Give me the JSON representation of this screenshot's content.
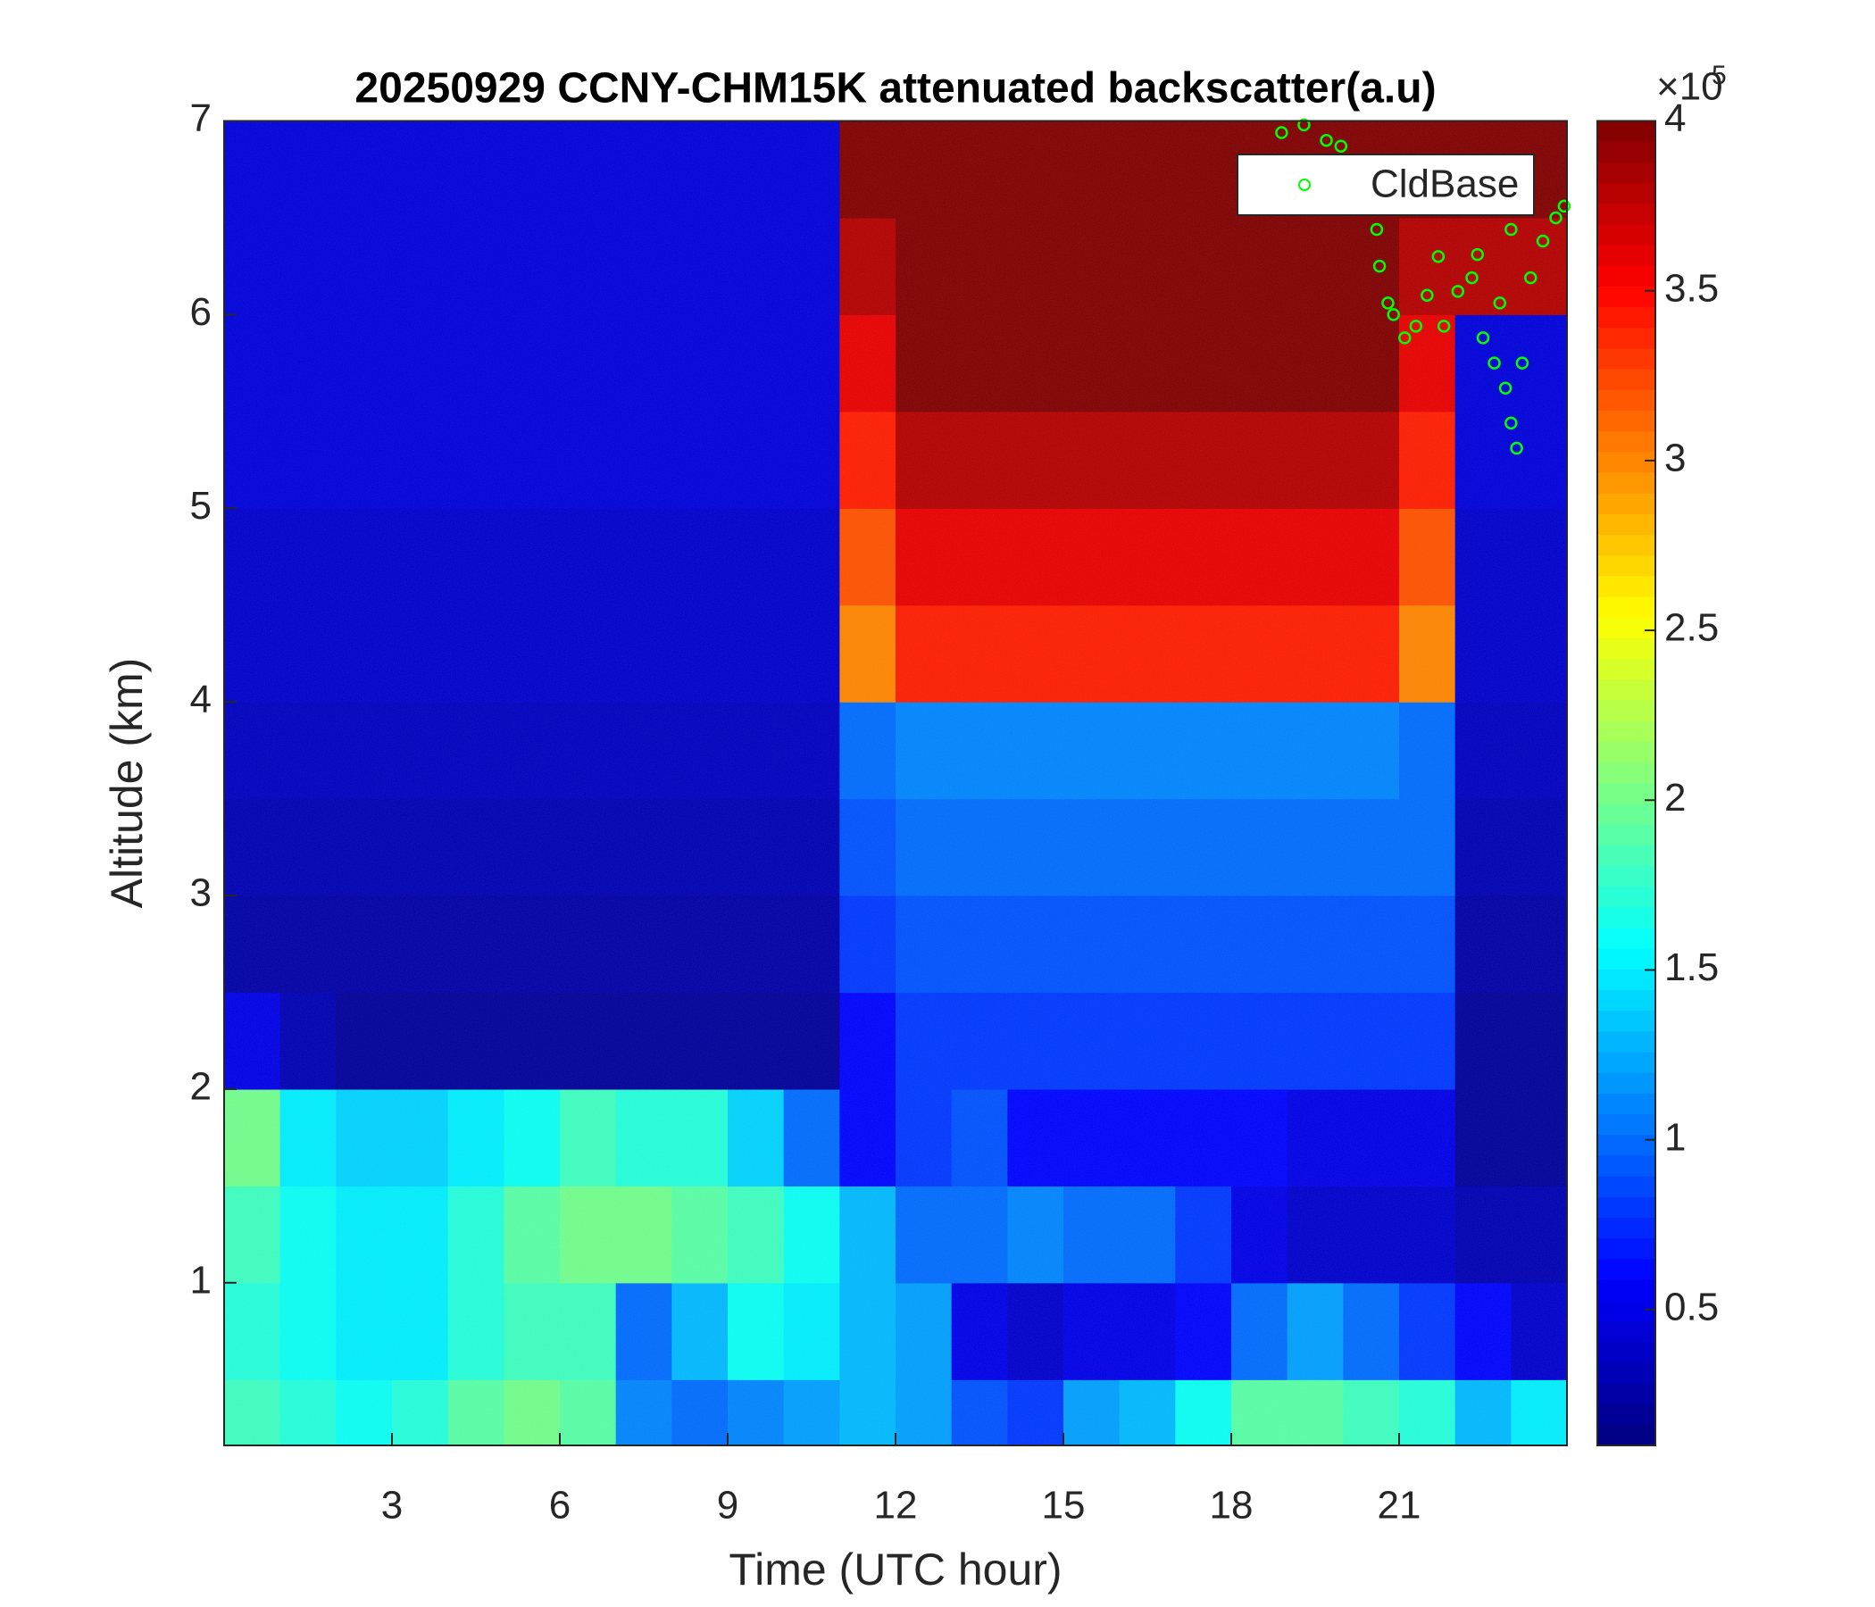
{
  "chart_data": {
    "type": "heatmap",
    "title": "20250929 CCNY-CHM15K attenuated backscatter(a.u)",
    "xlabel": "Time (UTC hour)",
    "ylabel": "Altitude (km)",
    "xlim": [
      0,
      24
    ],
    "xticks": [
      3,
      6,
      9,
      12,
      15,
      18,
      21
    ],
    "ylim": [
      0.16,
      7
    ],
    "yticks": [
      1,
      2,
      3,
      4,
      5,
      6,
      7
    ],
    "x_edges": [
      0,
      1,
      2,
      3,
      4,
      5,
      6,
      7,
      8,
      9,
      10,
      11,
      12,
      13,
      14,
      15,
      16,
      17,
      18,
      19,
      20,
      21,
      22,
      23,
      24
    ],
    "y_edges": [
      0.16,
      0.5,
      1,
      1.5,
      2,
      2.5,
      3,
      3.5,
      4,
      4.5,
      5,
      5.5,
      6,
      6.5,
      7
    ],
    "z": [
      [
        1.8,
        1.7,
        1.6,
        1.7,
        1.9,
        2.0,
        1.9,
        1.1,
        1.0,
        1.1,
        1.2,
        1.3,
        1.2,
        0.9,
        0.8,
        1.2,
        1.3,
        1.6,
        1.9,
        1.9,
        1.8,
        1.7,
        1.3,
        1.5
      ],
      [
        1.7,
        1.6,
        1.5,
        1.5,
        1.7,
        1.8,
        1.8,
        1.0,
        1.3,
        1.6,
        1.5,
        1.3,
        1.2,
        0.5,
        0.4,
        0.5,
        0.5,
        0.6,
        1.0,
        1.2,
        1.0,
        0.8,
        0.6,
        0.4
      ],
      [
        1.8,
        1.6,
        1.5,
        1.5,
        1.7,
        1.9,
        2.0,
        2.0,
        1.9,
        1.8,
        1.6,
        1.3,
        1.0,
        1.0,
        1.1,
        1.0,
        1.0,
        0.8,
        0.5,
        0.4,
        0.4,
        0.4,
        0.3,
        0.3
      ],
      [
        2.0,
        1.5,
        1.4,
        1.4,
        1.5,
        1.6,
        1.8,
        1.7,
        1.7,
        1.4,
        1.0,
        0.6,
        0.8,
        0.9,
        0.6,
        0.6,
        0.6,
        0.6,
        0.6,
        0.5,
        0.5,
        0.5,
        0.2,
        0.2
      ],
      [
        0.5,
        0.3,
        0.2,
        0.2,
        0.2,
        0.2,
        0.2,
        0.2,
        0.2,
        0.2,
        0.2,
        0.6,
        0.8,
        0.8,
        0.8,
        0.8,
        0.8,
        0.8,
        0.8,
        0.8,
        0.8,
        0.8,
        0.2,
        0.2
      ],
      [
        0.25,
        0.25,
        0.25,
        0.25,
        0.25,
        0.25,
        0.25,
        0.25,
        0.25,
        0.25,
        0.25,
        0.8,
        0.9,
        0.9,
        0.9,
        0.9,
        0.9,
        0.9,
        0.9,
        0.9,
        0.9,
        0.9,
        0.25,
        0.25
      ],
      [
        0.3,
        0.3,
        0.3,
        0.3,
        0.3,
        0.3,
        0.3,
        0.3,
        0.3,
        0.3,
        0.3,
        0.9,
        1.0,
        1.0,
        1.0,
        1.0,
        1.0,
        1.0,
        1.0,
        1.0,
        1.0,
        1.0,
        0.3,
        0.3
      ],
      [
        0.35,
        0.35,
        0.35,
        0.35,
        0.35,
        0.35,
        0.35,
        0.35,
        0.35,
        0.35,
        0.35,
        1.0,
        1.1,
        1.1,
        1.1,
        1.1,
        1.1,
        1.1,
        1.1,
        1.1,
        1.1,
        1.0,
        0.35,
        0.35
      ],
      [
        0.4,
        0.4,
        0.4,
        0.4,
        0.4,
        0.4,
        0.4,
        0.4,
        0.4,
        0.4,
        0.4,
        3.0,
        3.4,
        3.4,
        3.4,
        3.4,
        3.4,
        3.4,
        3.4,
        3.4,
        3.4,
        3.0,
        0.4,
        0.4
      ],
      [
        0.4,
        0.4,
        0.4,
        0.4,
        0.4,
        0.4,
        0.4,
        0.4,
        0.4,
        0.4,
        0.4,
        3.2,
        3.6,
        3.6,
        3.6,
        3.6,
        3.6,
        3.6,
        3.6,
        3.6,
        3.6,
        3.2,
        0.4,
        0.4
      ],
      [
        0.45,
        0.45,
        0.45,
        0.45,
        0.45,
        0.45,
        0.45,
        0.45,
        0.45,
        0.45,
        0.45,
        3.4,
        3.8,
        3.8,
        3.8,
        3.8,
        3.8,
        3.8,
        3.8,
        3.8,
        3.8,
        3.4,
        0.45,
        0.45
      ],
      [
        0.45,
        0.45,
        0.45,
        0.45,
        0.45,
        0.45,
        0.45,
        0.45,
        0.45,
        0.45,
        0.45,
        3.6,
        4,
        4,
        4,
        4,
        4,
        4,
        4,
        4,
        4,
        3.6,
        0.45,
        0.45
      ],
      [
        0.45,
        0.45,
        0.45,
        0.45,
        0.45,
        0.45,
        0.45,
        0.45,
        0.45,
        0.45,
        0.45,
        3.8,
        4,
        4,
        4,
        4,
        4,
        4,
        4,
        4,
        4,
        3.8,
        3.8,
        3.8
      ],
      [
        0.45,
        0.45,
        0.45,
        0.45,
        0.45,
        0.45,
        0.45,
        0.45,
        0.45,
        0.45,
        0.45,
        4,
        4,
        4,
        4,
        4,
        4,
        4,
        4,
        4,
        4,
        4,
        4,
        4
      ]
    ],
    "colormap": "jet",
    "colorbar": {
      "lim": [
        0.1,
        4
      ],
      "ticks": [
        0.5,
        1,
        1.5,
        2,
        2.5,
        3,
        3.5,
        4
      ],
      "multiplier_base": "×10",
      "multiplier_exponent": "5"
    },
    "series": [
      {
        "name": "CldBase",
        "type": "scatter",
        "color": "#00ff00",
        "x": [
          18.9,
          19.3,
          19.7,
          19.96,
          20.6,
          20.65,
          20.8,
          20.9,
          21.1,
          21.3,
          21.5,
          21.7,
          21.8,
          22.05,
          22.3,
          22.4,
          22.5,
          22.7,
          22.8,
          22.9,
          23.0,
          23.0,
          23.1,
          23.2,
          23.35,
          23.57,
          23.8,
          23.95
        ],
        "values": [
          6.94,
          6.98,
          6.9,
          6.87,
          6.44,
          6.25,
          6.06,
          6.0,
          5.88,
          5.94,
          6.1,
          6.3,
          5.94,
          6.12,
          6.19,
          6.31,
          5.88,
          5.75,
          6.06,
          5.62,
          5.44,
          6.44,
          5.31,
          5.75,
          6.19,
          6.38,
          6.5,
          6.56
        ]
      }
    ],
    "legend": "top-right"
  }
}
